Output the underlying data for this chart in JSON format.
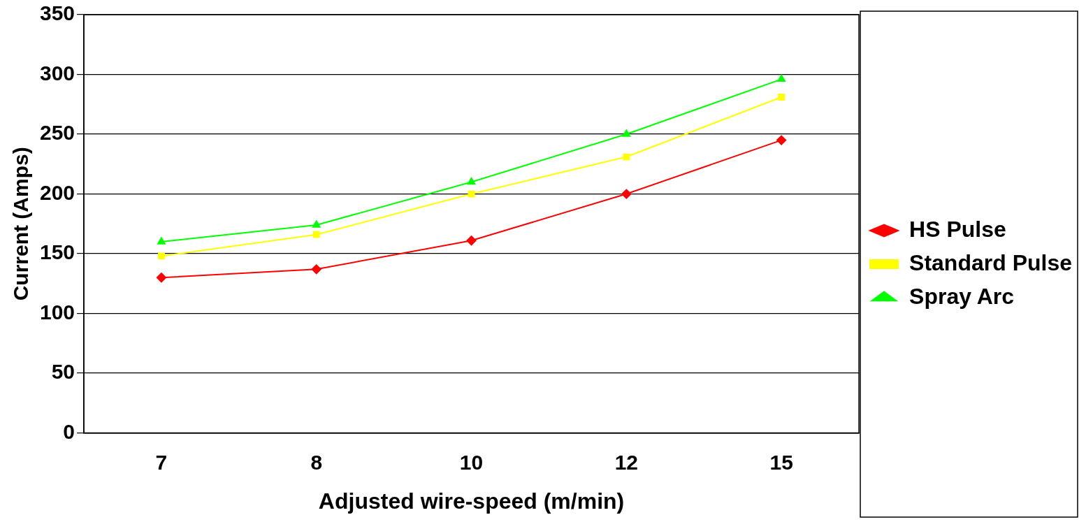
{
  "chart_data": {
    "type": "line",
    "xlabel": "Adjusted wire-speed (m/min)",
    "ylabel": "Current (Amps)",
    "categories": [
      "7",
      "8",
      "10",
      "12",
      "15"
    ],
    "series": [
      {
        "name": "HS Pulse",
        "color": "#ff0000",
        "marker": "diamond",
        "values": [
          130,
          137,
          161,
          200,
          245
        ]
      },
      {
        "name": "Standard Pulse",
        "color": "#ffff00",
        "marker": "square",
        "values": [
          148,
          166,
          200,
          231,
          281
        ]
      },
      {
        "name": "Spray Arc",
        "color": "#00ff00",
        "marker": "triangle",
        "values": [
          160,
          174,
          210,
          250,
          296
        ]
      }
    ],
    "ylim": [
      0,
      350
    ],
    "yticks": [
      0,
      50,
      100,
      150,
      200,
      250,
      300,
      350
    ],
    "grid": "y",
    "legend": "right",
    "line_style": "solid"
  }
}
